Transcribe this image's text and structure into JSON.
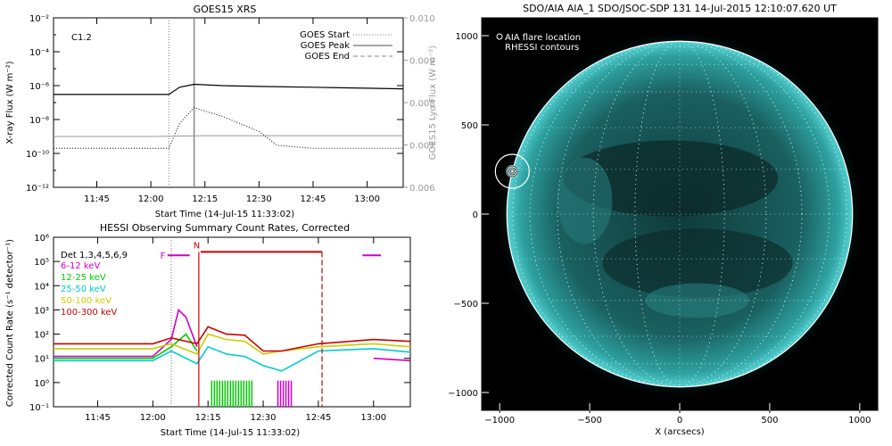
{
  "chart_data": [
    {
      "type": "line",
      "title": "GOES15 XRS",
      "xlabel": "Start Time (14-Jul-15 11:33:02)",
      "ylabel": "X-ray Flux (W m⁻²)",
      "y2label": "GOES15 Lyα Flux (W m⁻²)",
      "xticks": [
        "11:45",
        "12:00",
        "12:15",
        "12:30",
        "12:45",
        "13:00"
      ],
      "yticks": [
        "10⁻²",
        "10⁻⁴",
        "10⁻⁶",
        "10⁻⁸",
        "10⁻¹⁰",
        "10⁻¹²"
      ],
      "y2ticks": [
        "0.010",
        "0.009",
        "0.008",
        "0.007",
        "0.006"
      ],
      "ylim": [
        1e-12,
        0.01
      ],
      "y2lim": [
        0.006,
        0.01
      ],
      "yscale": "log",
      "annotation": "C1.2",
      "legend": [
        "GOES Start",
        "GOES Peak",
        "GOES End"
      ],
      "events": {
        "start": "12:05",
        "peak": "12:12",
        "end": ""
      },
      "series": [
        {
          "name": "",
          "x": [
            "11:33",
            "12:00",
            "12:05",
            "12:08",
            "12:12",
            "12:20",
            "12:30",
            "12:45",
            "13:00",
            "13:10"
          ],
          "values": [
            3e-07,
            3e-07,
            3e-07,
            8e-07,
            1.2e-06,
            1e-06,
            9e-07,
            8e-07,
            7e-07,
            6.5e-07
          ]
        },
        {
          "name": "",
          "x": [
            "11:33",
            "12:00",
            "12:05",
            "12:08",
            "12:12",
            "12:20",
            "12:30",
            "12:35",
            "12:45",
            "13:00",
            "13:10"
          ],
          "values": [
            2e-10,
            2e-10,
            2e-10,
            6e-09,
            5e-08,
            1.5e-08,
            2e-09,
            3e-10,
            2e-10,
            2e-10,
            2e-10
          ]
        },
        {
          "name": "",
          "x": [
            "11:33",
            "12:00",
            "12:15",
            "12:30",
            "12:45",
            "13:00",
            "13:10"
          ],
          "values": [
            0.0072,
            0.0072,
            0.00722,
            0.00722,
            0.00722,
            0.00722,
            0.00722
          ]
        }
      ]
    },
    {
      "type": "line",
      "title": "HESSI Observing Summary Count Rates, Corrected",
      "xlabel": "Start Time (14-Jul-15 11:33:02)",
      "ylabel": "Corrected Count Rate (s⁻¹ detector⁻¹)",
      "xticks": [
        "11:45",
        "12:00",
        "12:15",
        "12:30",
        "12:45",
        "13:00"
      ],
      "yticks": [
        "10⁶",
        "10⁵",
        "10⁴",
        "10³",
        "10²",
        "10¹",
        "10⁰",
        "10⁻¹"
      ],
      "ylim": [
        0.1,
        1000000
      ],
      "yscale": "log",
      "detectors": "Det 1,3,4,5,6,9",
      "markers": [
        "F",
        "N"
      ],
      "series": [
        {
          "name": "6-12 keV",
          "color": "#cc00cc",
          "x": [
            "11:33",
            "12:00",
            "12:05",
            "12:07",
            "12:09",
            "12:12",
            "12:12.5",
            "13:00",
            "13:10"
          ],
          "values": [
            12,
            12,
            60,
            1000,
            500,
            30,
            null,
            10,
            8
          ]
        },
        {
          "name": "12-25 keV",
          "color": "#00cc00",
          "x": [
            "11:33",
            "12:00",
            "12:05",
            "12:09",
            "12:12"
          ],
          "values": [
            10,
            10,
            30,
            100,
            20
          ]
        },
        {
          "name": "25-50 keV",
          "color": "#00cccc",
          "x": [
            "11:33",
            "12:00",
            "12:05",
            "12:12",
            "12:15",
            "12:20",
            "12:25",
            "12:30",
            "12:35",
            "12:45",
            "13:00",
            "13:10"
          ],
          "values": [
            8,
            8,
            20,
            6,
            30,
            15,
            12,
            5,
            3,
            20,
            25,
            18
          ]
        },
        {
          "name": "50-100 keV",
          "color": "#cccc00",
          "x": [
            "11:33",
            "12:00",
            "12:05",
            "12:12",
            "12:15",
            "12:20",
            "12:25",
            "12:30",
            "12:35",
            "12:45",
            "13:00",
            "13:10"
          ],
          "values": [
            25,
            25,
            40,
            15,
            100,
            60,
            50,
            15,
            20,
            30,
            40,
            30
          ]
        },
        {
          "name": "100-300 keV",
          "color": "#cc0000",
          "x": [
            "11:33",
            "12:00",
            "12:05",
            "12:12",
            "12:15",
            "12:20",
            "12:25",
            "12:30",
            "12:35",
            "12:45",
            "13:00",
            "13:10"
          ],
          "values": [
            40,
            40,
            70,
            40,
            200,
            100,
            90,
            20,
            20,
            40,
            60,
            50
          ]
        }
      ]
    },
    {
      "type": "heatmap",
      "title": "SDO/AIA AIA_1 SDO/JSOC-SDP 131 14-Jul-2015 12:10:07.620 UT",
      "xlabel": "X (arcsecs)",
      "ylabel": "",
      "xticks": [
        "−1000",
        "−500",
        "0",
        "500",
        "1000"
      ],
      "yticks": [
        "1000",
        "500",
        "0",
        "−500",
        "−1000"
      ],
      "xlim": [
        -1100,
        1100
      ],
      "ylim": [
        -1100,
        1100
      ],
      "legend": [
        "AIA flare location",
        "RHESSI contours"
      ],
      "flare_location": {
        "x": -930,
        "y": 240
      }
    }
  ]
}
